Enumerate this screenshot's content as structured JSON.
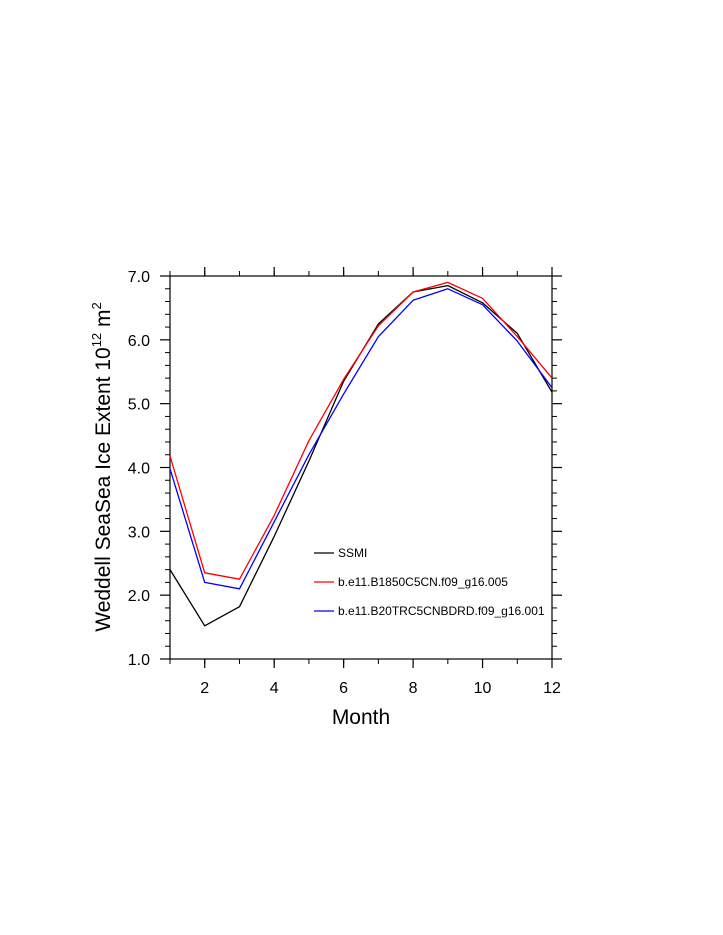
{
  "chart_data": {
    "type": "line",
    "xlabel": "Month",
    "ylabel": "Weddell SeaSea Ice Extent 10",
    "ylabel_superscript": "12",
    "ylabel_unit": "m",
    "ylabel_unit_superscript": "2",
    "xlim": [
      1,
      12
    ],
    "ylim": [
      1.0,
      7.0
    ],
    "x_ticks": [
      2,
      4,
      6,
      8,
      10,
      12
    ],
    "x_tick_labels": [
      "2",
      "4",
      "6",
      "8",
      "10",
      "12"
    ],
    "y_ticks": [
      1.0,
      2.0,
      3.0,
      4.0,
      5.0,
      6.0,
      7.0
    ],
    "y_tick_labels": [
      "1.0",
      "2.0",
      "3.0",
      "4.0",
      "5.0",
      "6.0",
      "7.0"
    ],
    "grid": false,
    "legend_position": "lower-right",
    "x": [
      1,
      2,
      3,
      4,
      5,
      6,
      7,
      8,
      9,
      10,
      11,
      12
    ],
    "series": [
      {
        "name": "SSMI",
        "color": "#000000",
        "values": [
          2.4,
          1.52,
          1.82,
          2.92,
          4.1,
          5.35,
          6.25,
          6.75,
          6.85,
          6.58,
          6.1,
          5.18
        ]
      },
      {
        "name": "b.e11.B1850C5CN.f09_g16.005",
        "color": "#ff0000",
        "values": [
          4.18,
          2.35,
          2.25,
          3.25,
          4.42,
          5.38,
          6.22,
          6.75,
          6.9,
          6.65,
          6.05,
          5.4
        ]
      },
      {
        "name": "b.e11.B20TRC5CNBDRD.f09_g16.001",
        "color": "#0000ff",
        "values": [
          3.98,
          2.2,
          2.1,
          3.15,
          4.2,
          5.15,
          6.05,
          6.62,
          6.8,
          6.55,
          5.98,
          5.25
        ]
      }
    ]
  }
}
